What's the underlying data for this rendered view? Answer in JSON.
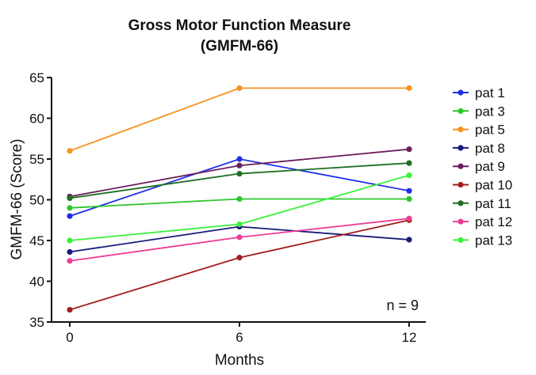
{
  "chart_data": {
    "type": "line",
    "title_line1": "Gross Motor Function Measure",
    "title_line2": "(GMFM-66)",
    "xlabel": "Months",
    "ylabel": "GMFM-66 (Score)",
    "x": [
      0,
      6,
      12
    ],
    "xticks": [
      "0",
      "6",
      "12"
    ],
    "yticks": [
      "35",
      "40",
      "45",
      "50",
      "55",
      "60",
      "65"
    ],
    "ylim": [
      35,
      65
    ],
    "annotation": "n = 9",
    "series": [
      {
        "name": "pat 1",
        "color": "#1f2ee8",
        "values": [
          48.0,
          55.0,
          51.1
        ]
      },
      {
        "name": "pat 3",
        "color": "#2cc72c",
        "values": [
          49.0,
          50.1,
          50.1
        ]
      },
      {
        "name": "pat 5",
        "color": "#f5931f",
        "values": [
          56.0,
          63.7,
          63.7
        ]
      },
      {
        "name": "pat 8",
        "color": "#1a1a7a",
        "values": [
          43.6,
          46.7,
          45.1
        ]
      },
      {
        "name": "pat 9",
        "color": "#6b1f5e",
        "values": [
          50.4,
          54.2,
          56.2
        ]
      },
      {
        "name": "pat 10",
        "color": "#a31c1c",
        "values": [
          36.5,
          42.9,
          47.5
        ]
      },
      {
        "name": "pat 11",
        "color": "#1e6e22",
        "values": [
          50.2,
          53.2,
          54.5
        ]
      },
      {
        "name": "pat 12",
        "color": "#ee3c97",
        "values": [
          42.5,
          45.4,
          47.7
        ]
      },
      {
        "name": "pat 13",
        "color": "#3af23a",
        "values": [
          45.0,
          47.0,
          53.0
        ]
      }
    ]
  }
}
